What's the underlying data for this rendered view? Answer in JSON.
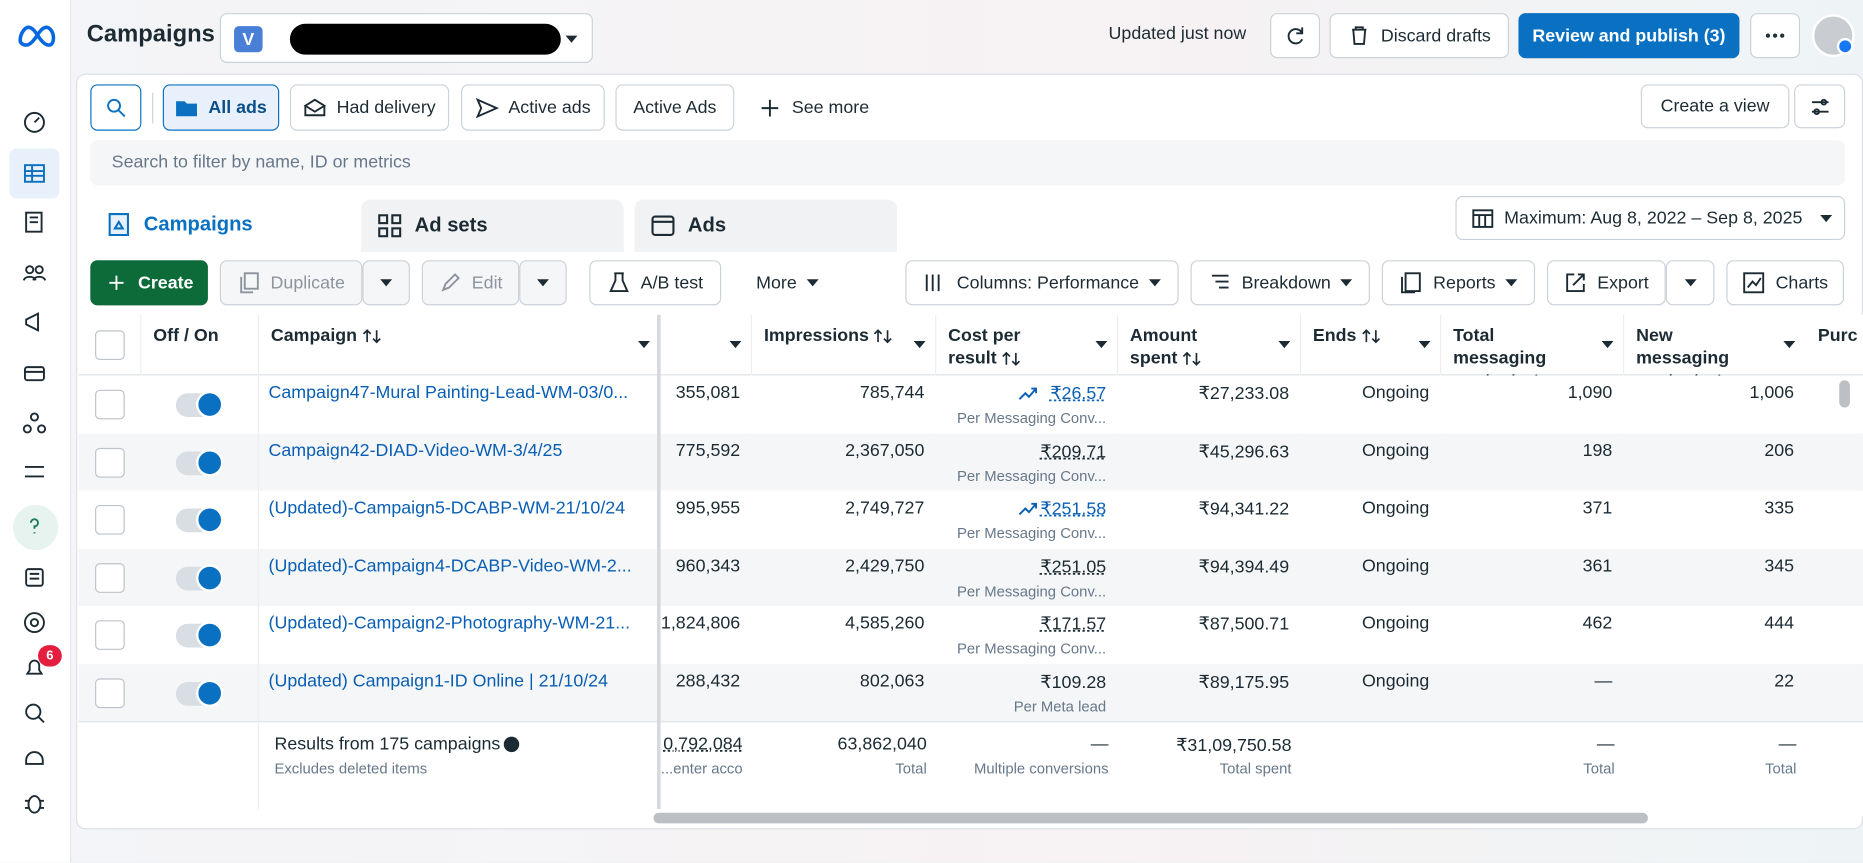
{
  "header": {
    "title": "Campaigns",
    "account_initial": "V",
    "status": "Updated just now",
    "discard": "Discard drafts",
    "publish": "Review and publish (3)"
  },
  "sidebar": {
    "notification_count": "6"
  },
  "filters": {
    "items": [
      "All ads",
      "Had delivery",
      "Active ads",
      "Active Ads",
      "See more"
    ],
    "create_view": "Create a view",
    "search_placeholder": "Search to filter by name, ID or metrics"
  },
  "tabs": {
    "items": [
      "Campaigns",
      "Ad sets",
      "Ads"
    ],
    "date_range": "Maximum: Aug 8, 2022 – Sep 8, 2025"
  },
  "toolbar": [
    "Create",
    "Duplicate",
    "Edit",
    "A/B test",
    "More",
    "Columns: Performance",
    "Breakdown",
    "Reports",
    "Export",
    "Charts"
  ],
  "table": {
    "headers": [
      "Off / On",
      "Campaign",
      "Impressions",
      "Cost per result",
      "Amount spent",
      "Ends",
      "Total messaging contacts",
      "New messaging contacts",
      "Purc"
    ],
    "rows": [
      {
        "campaign": "Campaign47-Mural Painting-Lead-WM-03/0...",
        "reach": "355,081",
        "impressions": "785,744",
        "cost": "₹26.57",
        "cost_basis": "Per Messaging Conv...",
        "amount": "₹27,233.08",
        "ends": "Ongoing",
        "total_messaging": "1,090",
        "new_messaging": "1,006"
      },
      {
        "campaign": "Campaign42-DIAD-Video-WM-3/4/25",
        "reach": "775,592",
        "impressions": "2,367,050",
        "cost": "₹209.71",
        "cost_basis": "Per Messaging Conv...",
        "amount": "₹45,296.63",
        "ends": "Ongoing",
        "total_messaging": "198",
        "new_messaging": "206"
      },
      {
        "campaign": "(Updated)-Campaign5-DCABP-WM-21/10/24",
        "reach": "995,955",
        "impressions": "2,749,727",
        "cost": "₹251.58",
        "cost_basis": "Per Messaging Conv...",
        "amount": "₹94,341.22",
        "ends": "Ongoing",
        "total_messaging": "371",
        "new_messaging": "335"
      },
      {
        "campaign": "(Updated)-Campaign4-DCABP-Video-WM-2...",
        "reach": "960,343",
        "impressions": "2,429,750",
        "cost": "₹251.05",
        "cost_basis": "Per Messaging Conv...",
        "amount": "₹94,394.49",
        "ends": "Ongoing",
        "total_messaging": "361",
        "new_messaging": "345"
      },
      {
        "campaign": "(Updated)-Campaign2-Photography-WM-21...",
        "reach": "1,824,806",
        "impressions": "4,585,260",
        "cost": "₹171.57",
        "cost_basis": "Per Messaging Conv...",
        "amount": "₹87,500.71",
        "ends": "Ongoing",
        "total_messaging": "462",
        "new_messaging": "444"
      },
      {
        "campaign": "(Updated) Campaign1-ID Online | 21/10/24",
        "reach": "288,432",
        "impressions": "802,063",
        "cost": "₹109.28",
        "cost_basis": "Per Meta lead",
        "amount": "₹89,175.95",
        "ends": "Ongoing",
        "total_messaging": "—",
        "new_messaging": "22"
      }
    ],
    "footer": {
      "summary": "Results from 175 campaigns",
      "summary_note": "Excludes deleted items",
      "reach": "0,792,084",
      "reach_note": "enter acco...",
      "impressions": "63,862,040",
      "impressions_note": "Total",
      "cost": "—",
      "cost_note": "Multiple conversions",
      "amount": "₹31,09,750.58",
      "amount_note": "Total spent",
      "total_messaging": "—",
      "total_messaging_note": "Total",
      "new_messaging": "—",
      "new_messaging_note": "Total"
    }
  }
}
